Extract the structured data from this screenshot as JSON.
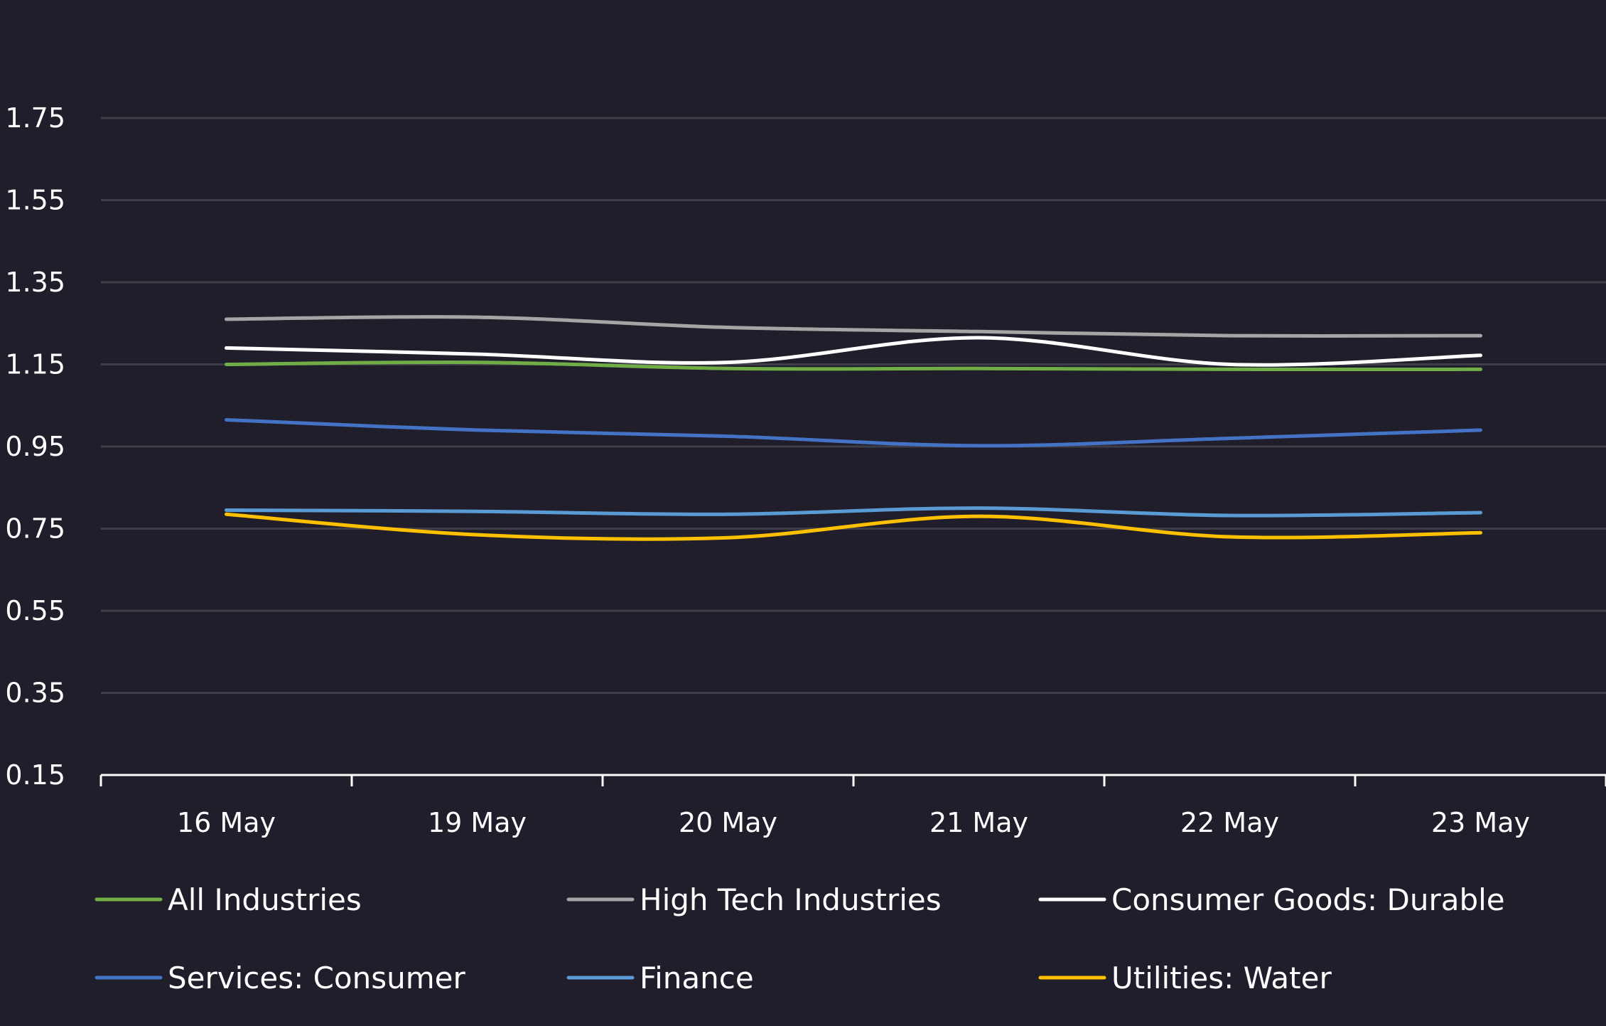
{
  "chart_data": {
    "type": "line",
    "title": "",
    "xlabel": "",
    "ylabel": "",
    "categories": [
      "16 May",
      "19 May",
      "20 May",
      "21 May",
      "22 May",
      "23 May"
    ],
    "ylim": [
      0.15,
      1.75
    ],
    "yticks": [
      "0.15",
      "0.35",
      "0.55",
      "0.75",
      "0.95",
      "1.15",
      "1.35",
      "1.55",
      "1.75"
    ],
    "grid": true,
    "legend_position": "bottom",
    "series": [
      {
        "name": "All Industries",
        "color": "#70ad47",
        "values": [
          1.15,
          1.155,
          1.14,
          1.14,
          1.138,
          1.138
        ]
      },
      {
        "name": "High Tech Industries",
        "color": "#a5a5a5",
        "values": [
          1.26,
          1.265,
          1.24,
          1.23,
          1.22,
          1.22
        ]
      },
      {
        "name": "Consumer Goods: Durable",
        "color": "#ffffff",
        "values": [
          1.19,
          1.175,
          1.155,
          1.215,
          1.15,
          1.172
        ]
      },
      {
        "name": "Services: Consumer",
        "color": "#4472c4",
        "values": [
          1.015,
          0.99,
          0.975,
          0.952,
          0.97,
          0.99
        ]
      },
      {
        "name": "Finance",
        "color": "#5b9bd5",
        "values": [
          0.795,
          0.792,
          0.785,
          0.8,
          0.782,
          0.789
        ]
      },
      {
        "name": "Utilities: Water",
        "color": "#ffc000",
        "values": [
          0.785,
          0.735,
          0.728,
          0.78,
          0.73,
          0.74
        ]
      }
    ]
  },
  "colors": {
    "background": "#1f1e2a",
    "grid": "#3f3e48",
    "axis": "#ffffff",
    "text": "#ffffff"
  }
}
